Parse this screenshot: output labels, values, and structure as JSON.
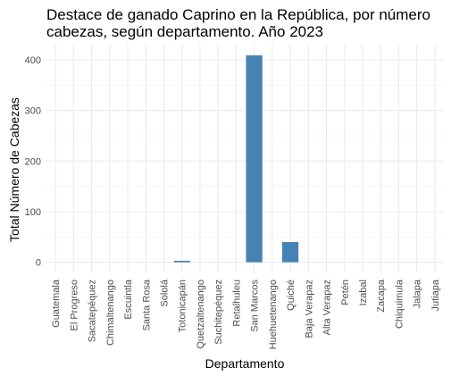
{
  "chart_data": {
    "type": "bar",
    "title": "Destace de ganado Caprino en la República, por número cabezas, según departamento. Año 2023",
    "xlabel": "Departamento",
    "ylabel": "Total Número de Cabezas",
    "categories": [
      "Guatemala",
      "El Progreso",
      "Sacatepéquez",
      "Chimaltenango",
      "Escuintla",
      "Santa Rosa",
      "Sololá",
      "Totonicapán",
      "Quetzaltenango",
      "Suchitepéquez",
      "Retalhuleu",
      "San Marcos",
      "Huehuetenango",
      "Quiché",
      "Baja Verapaz",
      "Alta Verapaz",
      "Petén",
      "Izabal",
      "Zacapa",
      "Chiquimula",
      "Jalapa",
      "Jutiapa"
    ],
    "values": [
      0,
      0,
      0,
      0,
      0,
      0,
      0,
      3,
      0,
      0,
      0,
      409,
      0,
      40,
      0,
      0,
      0,
      0,
      0,
      0,
      0,
      0
    ],
    "yticks": [
      0,
      100,
      200,
      300,
      400
    ],
    "ylim": [
      -20,
      430
    ],
    "bar_color": "#4682B4",
    "grid": true,
    "legend": "none"
  }
}
